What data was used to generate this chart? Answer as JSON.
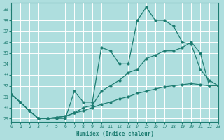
{
  "xlabel": "Humidex (Indice chaleur)",
  "xlim": [
    0,
    23
  ],
  "ylim": [
    28.7,
    39.6
  ],
  "yticks": [
    29,
    30,
    31,
    32,
    33,
    34,
    35,
    36,
    37,
    38,
    39
  ],
  "xticks": [
    0,
    1,
    2,
    3,
    4,
    5,
    6,
    7,
    8,
    9,
    10,
    11,
    12,
    13,
    14,
    15,
    16,
    17,
    18,
    19,
    20,
    21,
    22,
    23
  ],
  "background_color": "#aedede",
  "grid_color": "#ffffff",
  "line_color": "#1e7d72",
  "curve1_x": [
    0,
    1,
    2,
    3,
    4,
    5,
    6,
    7,
    8,
    9,
    10,
    11,
    12,
    13,
    14,
    15,
    16,
    17,
    18,
    19,
    20,
    21,
    22,
    23
  ],
  "curve1_y": [
    31.2,
    30.5,
    29.7,
    29.0,
    29.0,
    29.0,
    29.0,
    31.5,
    30.5,
    30.5,
    35.5,
    35.2,
    34.0,
    34.0,
    38.0,
    39.2,
    38.0,
    38.0,
    37.5,
    36.0,
    35.8,
    33.5,
    32.5,
    32.0
  ],
  "curve2_x": [
    0,
    1,
    2,
    3,
    4,
    5,
    6,
    7,
    8,
    9,
    10,
    11,
    12,
    13,
    14,
    15,
    16,
    17,
    18,
    19,
    20,
    21,
    22,
    23
  ],
  "curve2_y": [
    31.2,
    30.5,
    29.7,
    29.0,
    29.0,
    29.1,
    29.2,
    29.5,
    30.0,
    30.2,
    31.5,
    32.0,
    32.5,
    33.2,
    33.5,
    34.5,
    34.8,
    35.2,
    35.2,
    35.5,
    36.0,
    35.0,
    32.0,
    32.0
  ],
  "curve3_x": [
    0,
    1,
    2,
    3,
    4,
    5,
    6,
    7,
    8,
    9,
    10,
    11,
    12,
    13,
    14,
    15,
    16,
    17,
    18,
    19,
    20,
    21,
    22,
    23
  ],
  "curve3_y": [
    31.2,
    30.5,
    29.7,
    29.0,
    29.0,
    29.1,
    29.2,
    29.5,
    29.7,
    30.0,
    30.3,
    30.5,
    30.8,
    31.0,
    31.3,
    31.5,
    31.7,
    31.9,
    32.0,
    32.1,
    32.2,
    32.1,
    32.0,
    32.0
  ],
  "lw": 0.9,
  "ms": 2.0
}
